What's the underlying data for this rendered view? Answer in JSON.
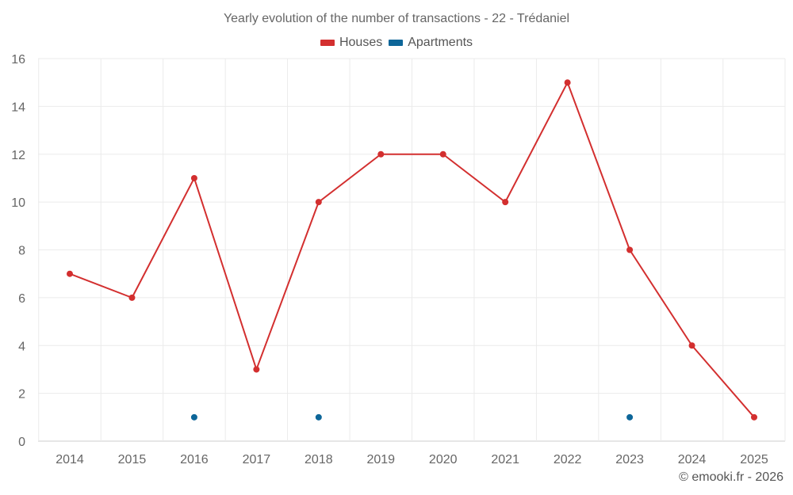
{
  "chart_data": {
    "type": "line",
    "title": "Yearly evolution of the number of transactions - 22 - Trédaniel",
    "categories": [
      "2014",
      "2015",
      "2016",
      "2017",
      "2018",
      "2019",
      "2020",
      "2021",
      "2022",
      "2023",
      "2024",
      "2025"
    ],
    "series": [
      {
        "name": "Houses",
        "color": "#d32f2f",
        "style": "line",
        "values": [
          7,
          6,
          11,
          3,
          10,
          12,
          12,
          10,
          15,
          8,
          4,
          1
        ]
      },
      {
        "name": "Apartments",
        "color": "#0d6699",
        "style": "points",
        "values": [
          null,
          null,
          1,
          null,
          1,
          null,
          null,
          null,
          null,
          1,
          null,
          null
        ]
      }
    ],
    "ylim": [
      0,
      16
    ],
    "yticks": [
      0,
      2,
      4,
      6,
      8,
      10,
      12,
      14,
      16
    ],
    "grid": true,
    "legend_position": "top-center",
    "xlabel": "",
    "ylabel": ""
  },
  "credit": "© emooki.fr - 2026"
}
